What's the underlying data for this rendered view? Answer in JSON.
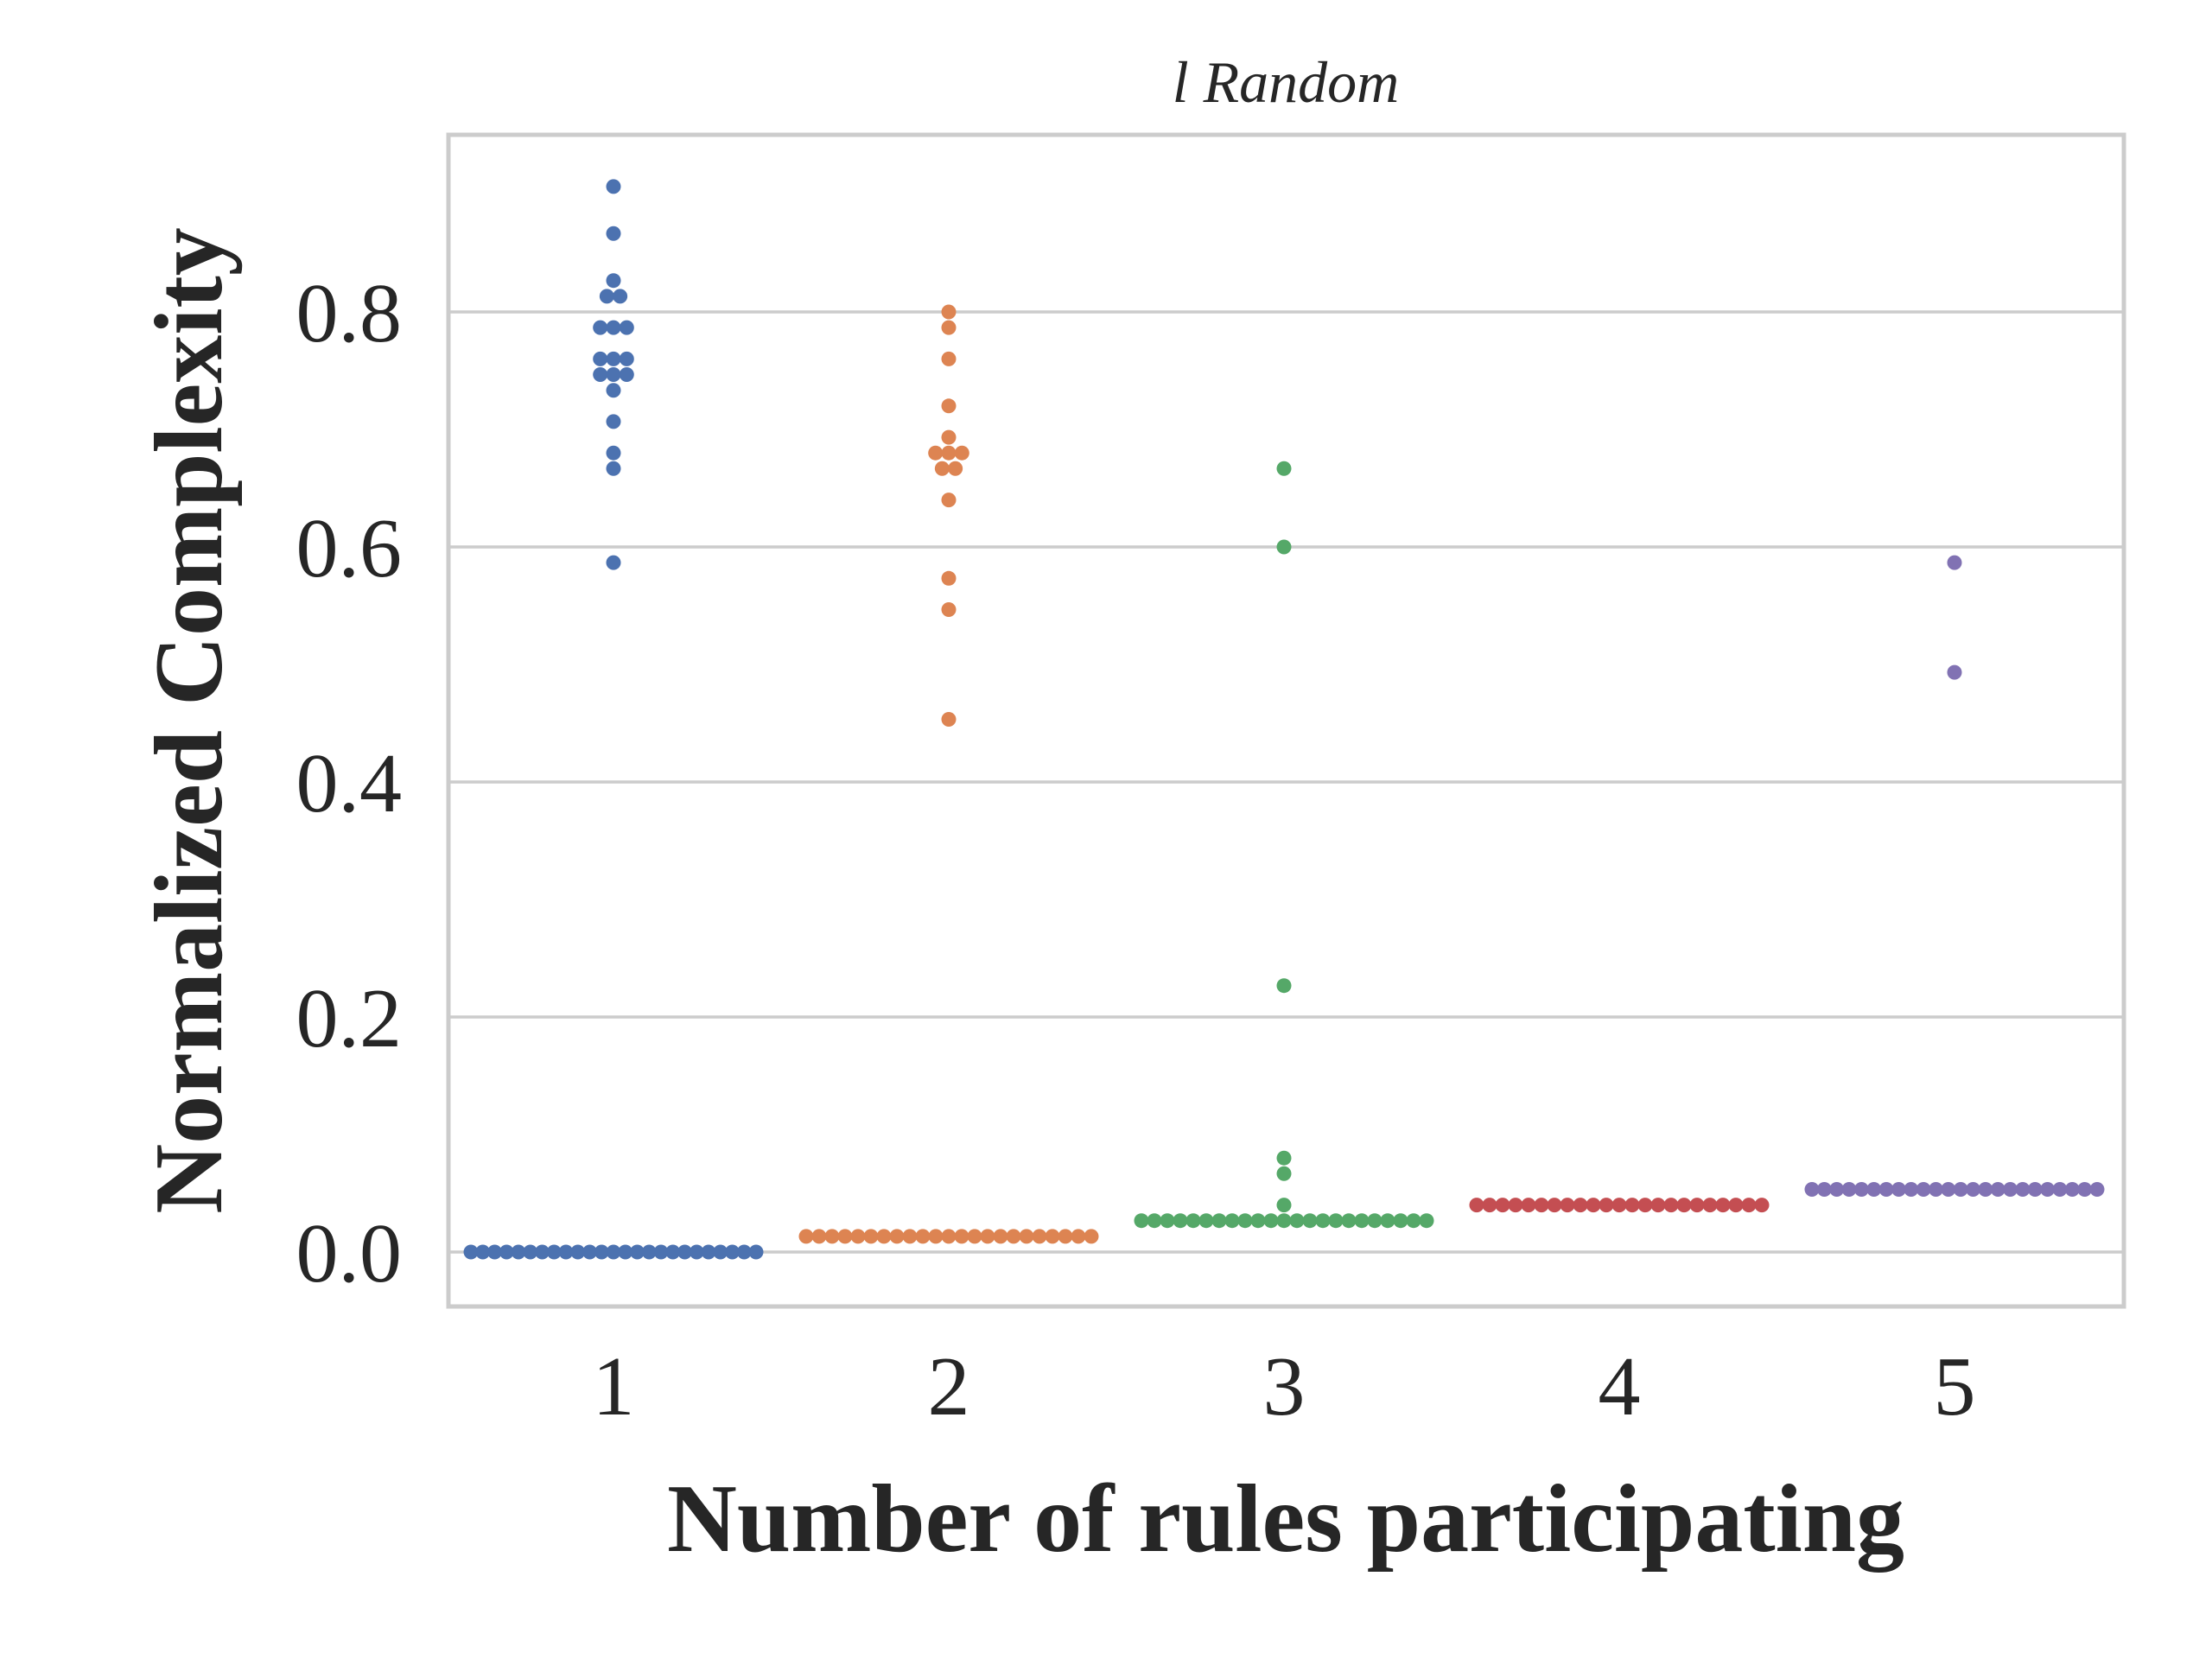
{
  "chart_data": {
    "type": "scatter",
    "title": "l Random",
    "xlabel": "Number of rules participating",
    "ylabel": "Normalized Complexity",
    "categories": [
      "1",
      "2",
      "3",
      "4",
      "5"
    ],
    "yticks": [
      "0.0",
      "0.2",
      "0.4",
      "0.6",
      "0.8"
    ],
    "ylim": [
      -0.045,
      0.95
    ],
    "grid": true,
    "legend": "none",
    "series": [
      {
        "category": "1",
        "color": "#4c72b0",
        "values": [
          0.0,
          0.0,
          0.0,
          0.0,
          0.0,
          0.0,
          0.0,
          0.0,
          0.0,
          0.0,
          0.0,
          0.0,
          0.0,
          0.0,
          0.0,
          0.0,
          0.0,
          0.0,
          0.0,
          0.0,
          0.0,
          0.0,
          0.0,
          0.0,
          0.0,
          0.5867,
          0.6667,
          0.68,
          0.7067,
          0.7333,
          0.7467,
          0.7467,
          0.7467,
          0.76,
          0.76,
          0.76,
          0.7867,
          0.7867,
          0.7867,
          0.8133,
          0.8133,
          0.8267,
          0.8667,
          0.9067
        ]
      },
      {
        "category": "2",
        "color": "#dd8452",
        "values": [
          0.0133,
          0.0133,
          0.0133,
          0.0133,
          0.0133,
          0.0133,
          0.0133,
          0.0133,
          0.0133,
          0.0133,
          0.0133,
          0.0133,
          0.0133,
          0.0133,
          0.0133,
          0.0133,
          0.0133,
          0.0133,
          0.0133,
          0.0133,
          0.0133,
          0.0133,
          0.0133,
          0.4533,
          0.5467,
          0.5733,
          0.64,
          0.6667,
          0.6667,
          0.68,
          0.68,
          0.68,
          0.6933,
          0.72,
          0.76,
          0.7867,
          0.8
        ]
      },
      {
        "category": "3",
        "color": "#55a868",
        "values": [
          0.0267,
          0.0267,
          0.0267,
          0.0267,
          0.0267,
          0.0267,
          0.0267,
          0.0267,
          0.0267,
          0.0267,
          0.0267,
          0.0267,
          0.0267,
          0.0267,
          0.0267,
          0.0267,
          0.0267,
          0.0267,
          0.0267,
          0.0267,
          0.0267,
          0.0267,
          0.0267,
          0.04,
          0.0667,
          0.08,
          0.2267,
          0.6,
          0.6667
        ]
      },
      {
        "category": "4",
        "color": "#c44e52",
        "values": [
          0.04,
          0.04,
          0.04,
          0.04,
          0.04,
          0.04,
          0.04,
          0.04,
          0.04,
          0.04,
          0.04,
          0.04,
          0.04,
          0.04,
          0.04,
          0.04,
          0.04,
          0.04,
          0.04,
          0.04,
          0.04,
          0.04,
          0.04
        ]
      },
      {
        "category": "5",
        "color": "#8172b3",
        "values": [
          0.0533,
          0.0533,
          0.0533,
          0.0533,
          0.0533,
          0.0533,
          0.0533,
          0.0533,
          0.0533,
          0.0533,
          0.0533,
          0.0533,
          0.0533,
          0.0533,
          0.0533,
          0.0533,
          0.0533,
          0.0533,
          0.0533,
          0.0533,
          0.0533,
          0.0533,
          0.0533,
          0.0533,
          0.4933,
          0.5867
        ]
      }
    ]
  }
}
